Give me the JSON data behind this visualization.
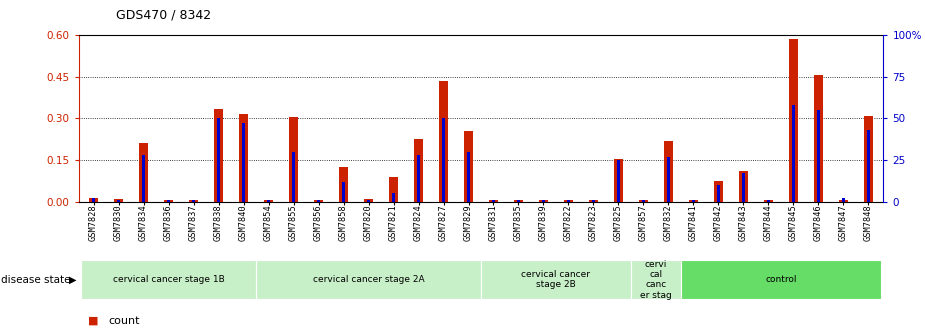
{
  "title": "GDS470 / 8342",
  "samples": [
    "GSM7828",
    "GSM7830",
    "GSM7834",
    "GSM7836",
    "GSM7837",
    "GSM7838",
    "GSM7840",
    "GSM7854",
    "GSM7855",
    "GSM7856",
    "GSM7858",
    "GSM7820",
    "GSM7821",
    "GSM7824",
    "GSM7827",
    "GSM7829",
    "GSM7831",
    "GSM7835",
    "GSM7839",
    "GSM7822",
    "GSM7823",
    "GSM7825",
    "GSM7857",
    "GSM7832",
    "GSM7841",
    "GSM7842",
    "GSM7843",
    "GSM7844",
    "GSM7845",
    "GSM7846",
    "GSM7847",
    "GSM7848"
  ],
  "counts": [
    0.012,
    0.008,
    0.21,
    0.005,
    0.005,
    0.335,
    0.315,
    0.005,
    0.305,
    0.005,
    0.125,
    0.008,
    0.09,
    0.225,
    0.435,
    0.255,
    0.005,
    0.005,
    0.005,
    0.005,
    0.005,
    0.155,
    0.005,
    0.22,
    0.005,
    0.075,
    0.11,
    0.005,
    0.585,
    0.455,
    0.007,
    0.31
  ],
  "percentiles": [
    2,
    1,
    28,
    1,
    1,
    50,
    47,
    1,
    30,
    1,
    12,
    1,
    5,
    28,
    50,
    30,
    1,
    1,
    1,
    1,
    1,
    25,
    1,
    27,
    1,
    10,
    17,
    1,
    58,
    55,
    2,
    43
  ],
  "groups": [
    {
      "label": "cervical cancer stage 1B",
      "start": 0,
      "end": 7,
      "color": "#c8f0c8"
    },
    {
      "label": "cervical cancer stage 2A",
      "start": 7,
      "end": 16,
      "color": "#c8f0c8"
    },
    {
      "label": "cervical cancer\nstage 2B",
      "start": 16,
      "end": 22,
      "color": "#c8f0c8"
    },
    {
      "label": "cervi\ncal\ncanc\ner stag",
      "start": 22,
      "end": 24,
      "color": "#c8f0c8"
    },
    {
      "label": "control",
      "start": 24,
      "end": 32,
      "color": "#66dd66"
    }
  ],
  "ylim_left": [
    0,
    0.6
  ],
  "ylim_right": [
    0,
    100
  ],
  "yticks_left": [
    0,
    0.15,
    0.3,
    0.45,
    0.6
  ],
  "yticks_right": [
    0,
    25,
    50,
    75,
    100
  ],
  "count_color": "#cc2200",
  "percentile_color": "#0000cc",
  "count_bar_width": 0.38,
  "pct_bar_width": 0.13
}
